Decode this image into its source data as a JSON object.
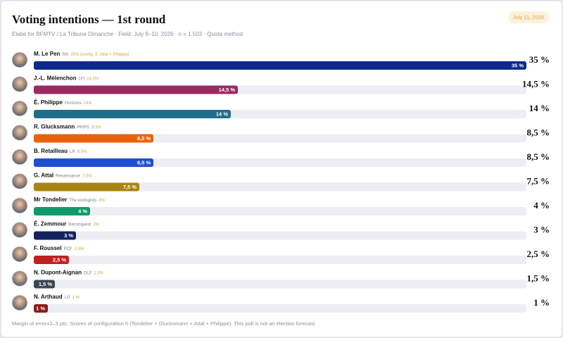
{
  "chart_data": {
    "type": "bar",
    "title": "Voting intentions — 1st round",
    "subtitle": "Elabe for BFMTV / La Tribune Dimanche · Field: July 9–10, 2026 · n = 1,503 · Quota method",
    "date": "July 11, 2026",
    "footnote": "Margin of error±2–3 pts. Scores of configuration 5 (Tondelier + Glucksmann + Attal + Philippe). This poll is not an election forecast.",
    "categories": [
      "M. Le Pen",
      "J.-L. Mélenchon",
      "É. Philippe",
      "R. Glucksmann",
      "B. Retailleau",
      "G. Attal",
      "Mr Tondelier",
      "É. Zemmour",
      "F. Roussel",
      "N. Dupont-Aignan",
      "N. Arthaud"
    ],
    "parties": [
      "RN",
      "LFI",
      "Horizons",
      "PP/PS",
      "LR",
      "Renaissance",
      "The ecologists",
      "Reconquest",
      "PCF",
      "DLF",
      "LO"
    ],
    "notes": [
      "35% (config. 5: Attal + Philippe)",
      "14.5%",
      "14%",
      "8.5%",
      "8.5%",
      "7.5%",
      "4%",
      "3%",
      "2.5%",
      "1.5%",
      "1 %"
    ],
    "values": [
      35,
      14.5,
      14,
      8.5,
      8.5,
      7.5,
      4,
      3,
      2.5,
      1.5,
      1
    ],
    "value_labels": [
      "35 %",
      "14,5 %",
      "14 %",
      "8,5 %",
      "8,5 %",
      "7,5 %",
      "4 %",
      "3 %",
      "2,5 %",
      "1,5 %",
      "1 %"
    ],
    "colors": [
      "#0c2a8c",
      "#9a2a62",
      "#1f6e8a",
      "#e8620c",
      "#1f4fd0",
      "#a88412",
      "#0f9a6a",
      "#13235e",
      "#c0201f",
      "#3a4654",
      "#8a1a1a"
    ],
    "xlim": [
      0,
      35
    ]
  }
}
